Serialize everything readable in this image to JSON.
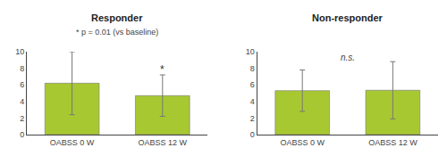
{
  "chart_data": [
    {
      "type": "bar",
      "title": "Responder",
      "subtitle": "* p = 0.01 (vs baseline)",
      "categories": [
        "OABSS 0 W",
        "OABSS 12 W"
      ],
      "values": [
        6.2,
        4.7
      ],
      "errors": [
        3.8,
        2.5
      ],
      "color": "#a8c832",
      "ylim": [
        0,
        10
      ],
      "yticks": [
        0,
        2,
        4,
        6,
        8,
        10
      ],
      "grid": false,
      "annotations": [
        {
          "text": "*",
          "category": "OABSS 12 W"
        }
      ]
    },
    {
      "type": "bar",
      "title": "Non-responder",
      "categories": [
        "OABSS 0 W",
        "OABSS 12 W"
      ],
      "values": [
        5.3,
        5.35
      ],
      "errors": [
        2.5,
        3.45
      ],
      "color": "#a8c832",
      "ylim": [
        0,
        10
      ],
      "yticks": [
        0,
        2,
        4,
        6,
        8,
        10
      ],
      "grid": false,
      "annotations": [
        {
          "text": "n.s."
        }
      ]
    }
  ]
}
